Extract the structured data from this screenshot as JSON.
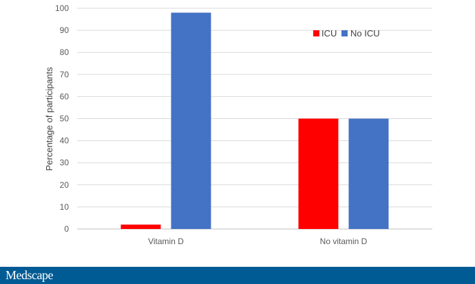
{
  "chart_data": {
    "type": "bar",
    "title": "",
    "xlabel": "",
    "ylabel": "Percentage of participants",
    "ylim": [
      0,
      100
    ],
    "yticks": [
      0,
      10,
      20,
      30,
      40,
      50,
      60,
      70,
      80,
      90,
      100
    ],
    "categories": [
      "Vitamin D",
      "No vitamin D"
    ],
    "series": [
      {
        "name": "ICU",
        "color": "#ff0000",
        "values": [
          2,
          50
        ]
      },
      {
        "name": "No ICU",
        "color": "#4472c4",
        "values": [
          98,
          50
        ]
      }
    ],
    "grid": true,
    "legend_position": "top-right"
  },
  "footer": {
    "brand": "Medscape",
    "bar_color": "#005b94"
  }
}
